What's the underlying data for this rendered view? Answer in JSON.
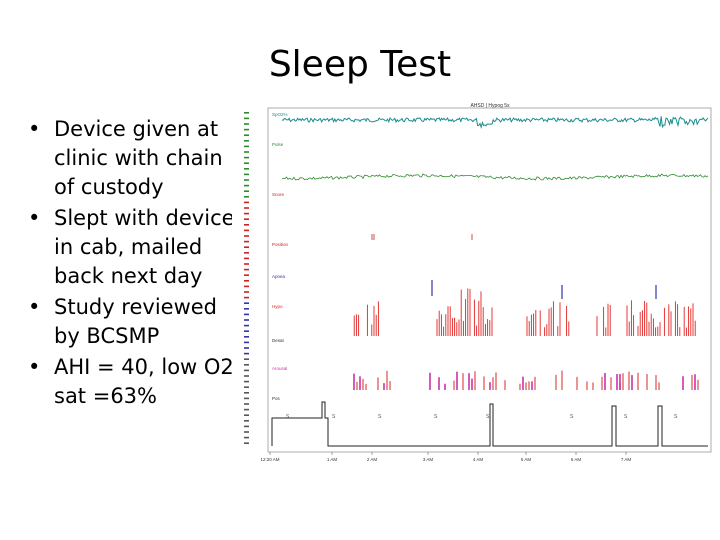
{
  "slide": {
    "title": "Sleep Test",
    "bullets": [
      "Device given at clinic with chain of custody",
      "Slept with device in cab, mailed back next day",
      "Study reviewed by BCSMP",
      "AHI = 40, low O2 sat =63%"
    ],
    "bullet_glyph": "•"
  },
  "figure": {
    "header": "AHSD | Hypog 5s",
    "channels": [
      "SpO2%",
      "Pulse",
      "Snore",
      "Position",
      "Apnea",
      "Hypo",
      "Desat",
      "Arousal",
      "Pos"
    ],
    "channel_colors": {
      "spo2": "#1a8c8c",
      "pulse": "#2e8b2e",
      "snore": "#cc2222",
      "position": "#cc2222",
      "apnea": "#3333aa",
      "hypo": "#e22222",
      "desat": "#333333",
      "arousal": "#cc33aa",
      "pos": "#333333"
    },
    "time_labels": [
      "12:20 AM",
      "1 AM",
      "2 AM",
      "3 AM",
      "4 AM",
      "5 AM",
      "6 AM",
      "7 AM"
    ]
  }
}
